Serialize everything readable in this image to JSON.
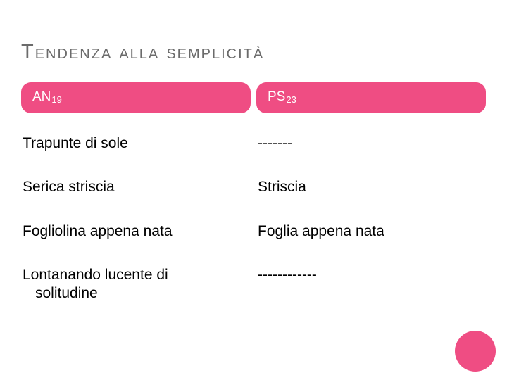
{
  "title": {
    "text_html": "Tendenza alla semplicità",
    "color": "#6b6b6b"
  },
  "table": {
    "type": "table",
    "header_bg": "#ef4d83",
    "header_text_color": "#ffffff",
    "columns": [
      {
        "label": "AN",
        "sub": "19"
      },
      {
        "label": "PS",
        "sub": "23"
      }
    ],
    "rows": [
      [
        "Trapunte  di sole",
        "-------"
      ],
      [
        "Serica striscia",
        "Striscia"
      ],
      [
        "Fogliolina appena nata",
        "Foglia appena nata"
      ],
      [
        "Lontanando lucente di\n  solitudine",
        "------------"
      ]
    ],
    "body_text_color": "#000000",
    "body_fontsize": 21,
    "header_fontsize": 19
  },
  "accent_circle": {
    "color": "#ef4d83"
  }
}
